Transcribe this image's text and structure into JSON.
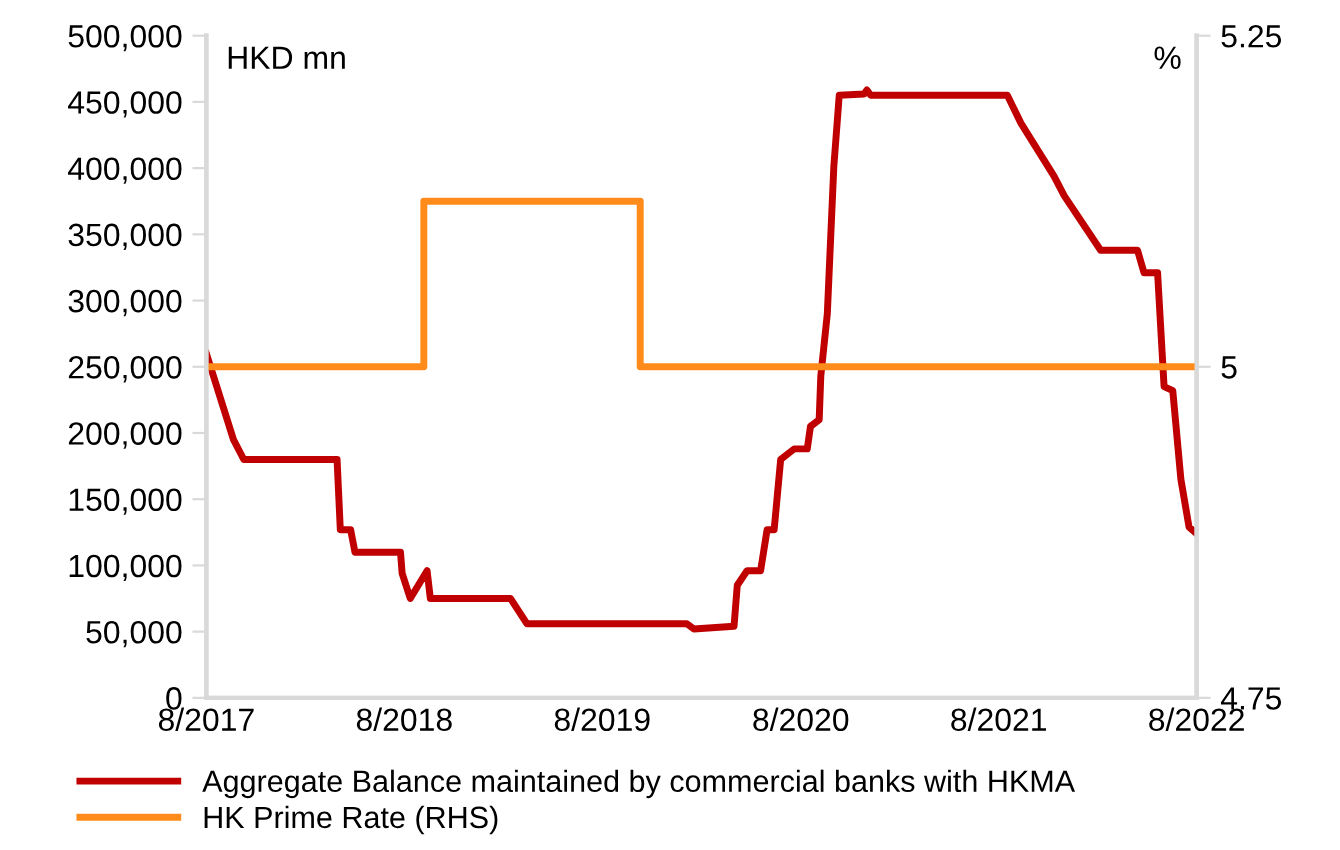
{
  "chart_data": {
    "type": "line",
    "ylabel": "HKD mn",
    "y2label": "%",
    "xlim": [
      "2017-08-01",
      "2022-08-01"
    ],
    "xticks": [
      {
        "value": "2017-08-01",
        "label": "8/2017"
      },
      {
        "value": "2018-08-01",
        "label": "8/2018"
      },
      {
        "value": "2019-08-01",
        "label": "8/2019"
      },
      {
        "value": "2020-08-01",
        "label": "8/2020"
      },
      {
        "value": "2021-08-01",
        "label": "8/2021"
      },
      {
        "value": "2022-08-01",
        "label": "8/2022"
      }
    ],
    "ylim": [
      0,
      500000
    ],
    "yticks": [
      {
        "value": 0,
        "label": "0"
      },
      {
        "value": 50000,
        "label": "50,000"
      },
      {
        "value": 100000,
        "label": "100,000"
      },
      {
        "value": 150000,
        "label": "150,000"
      },
      {
        "value": 200000,
        "label": "200,000"
      },
      {
        "value": 250000,
        "label": "250,000"
      },
      {
        "value": 300000,
        "label": "300,000"
      },
      {
        "value": 350000,
        "label": "350,000"
      },
      {
        "value": 400000,
        "label": "400,000"
      },
      {
        "value": 450000,
        "label": "450,000"
      },
      {
        "value": 500000,
        "label": "500,000"
      }
    ],
    "y2lim": [
      4.75,
      5.25
    ],
    "y2ticks": [
      4.75,
      5,
      5.25
    ],
    "grid": false,
    "legend": "bottom",
    "marker": "none",
    "line_style": "solid",
    "series": [
      {
        "name": "Aggregate Balance maintained by commercial banks with HKMA",
        "color": "#c00000",
        "x": [
          "2017-08-01",
          "2017-09-20",
          "2017-10-09",
          "2018-03-30",
          "2018-04-05",
          "2018-04-24",
          "2018-05-02",
          "2018-07-25",
          "2018-07-28",
          "2018-08-12",
          "2018-09-12",
          "2018-09-18",
          "2019-02-13",
          "2019-03-15",
          "2020-01-04",
          "2020-01-17",
          "2020-03-31",
          "2020-04-06",
          "2020-04-24",
          "2020-05-19",
          "2020-05-31",
          "2020-06-13",
          "2020-06-25",
          "2020-07-20",
          "2020-08-13",
          "2020-08-19",
          "2020-09-04",
          "2020-09-07",
          "2020-09-19",
          "2020-10-01",
          "2020-10-11",
          "2020-11-26",
          "2020-12-01",
          "2020-12-08",
          "2021-08-17",
          "2021-09-11",
          "2021-11-11",
          "2021-11-30",
          "2022-02-05",
          "2022-04-14",
          "2022-04-26",
          "2022-05-21",
          "2022-06-02",
          "2022-06-18",
          "2022-07-03",
          "2022-07-18",
          "2022-08-01"
        ],
        "values": [
          260000,
          195000,
          180000,
          180000,
          127000,
          127000,
          110000,
          110000,
          94000,
          75000,
          96000,
          75000,
          75000,
          56000,
          56000,
          52000,
          54000,
          85000,
          96000,
          96000,
          127000,
          127000,
          180000,
          188000,
          188000,
          205000,
          210000,
          243000,
          290000,
          401000,
          455000,
          456000,
          459000,
          455000,
          455000,
          434000,
          394000,
          379000,
          338000,
          338000,
          321000,
          321000,
          235000,
          232000,
          165000,
          129000,
          124000
        ]
      },
      {
        "name": "HK Prime Rate (RHS)",
        "color": "#ff8c1a",
        "type": "step",
        "axis": "y2",
        "x": [
          "2017-08-01",
          "2018-09-06",
          "2019-10-10",
          "2022-08-01"
        ],
        "values": [
          5,
          5.125,
          5,
          5
        ]
      }
    ]
  }
}
